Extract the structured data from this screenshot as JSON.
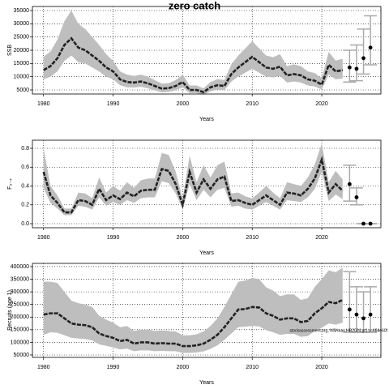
{
  "chart_data": [
    {
      "type": "line",
      "title": "zero catch",
      "ylabel": "SSB",
      "xlabel": "Years",
      "xlim": [
        1978.4,
        2028.5
      ],
      "xticks": [
        1980,
        1990,
        2000,
        2010,
        2020
      ],
      "ylim": [
        3470,
        36530
      ],
      "yticks": [
        5000,
        10000,
        15000,
        20000,
        25000,
        30000,
        35000
      ],
      "grid": true,
      "color": "#222222",
      "band_color": "#bebebe",
      "bar_color": "#aaaaaa",
      "x": [
        1980,
        1981,
        1982,
        1983,
        1984,
        1985,
        1986,
        1987,
        1988,
        1989,
        1990,
        1991,
        1992,
        1993,
        1994,
        1995,
        1996,
        1997,
        1998,
        1999,
        2000,
        2001,
        2002,
        2003,
        2004,
        2005,
        2006,
        2007,
        2008,
        2009,
        2010,
        2011,
        2012,
        2013,
        2014,
        2015,
        2016,
        2017,
        2018,
        2019,
        2020,
        2021,
        2022,
        2023
      ],
      "values": [
        12500,
        14000,
        17000,
        22000,
        24500,
        21000,
        20000,
        18000,
        16000,
        13500,
        12000,
        9000,
        8000,
        7800,
        8200,
        7500,
        6500,
        5500,
        5700,
        6500,
        8000,
        5000,
        5000,
        4200,
        6000,
        6800,
        6500,
        11000,
        13500,
        15500,
        17500,
        15500,
        13500,
        13000,
        13800,
        10500,
        11000,
        10500,
        9000,
        8500,
        7000,
        14500,
        12000,
        12500
      ],
      "low": [
        9000,
        10000,
        12000,
        16000,
        18000,
        15500,
        15000,
        13500,
        12000,
        10000,
        9000,
        6800,
        6000,
        5900,
        6200,
        5600,
        4900,
        4100,
        4300,
        4900,
        6000,
        3800,
        3800,
        3200,
        4500,
        5100,
        4900,
        8200,
        10000,
        11500,
        13000,
        11500,
        10000,
        9700,
        10300,
        7800,
        8200,
        7800,
        6700,
        6300,
        5200,
        10800,
        9000,
        9300
      ],
      "high": [
        17500,
        19500,
        24000,
        31000,
        35000,
        30000,
        28000,
        25000,
        22000,
        18500,
        16000,
        12000,
        10800,
        10300,
        10800,
        10000,
        8700,
        7400,
        7600,
        8700,
        10800,
        6700,
        6700,
        5600,
        8000,
        9100,
        8700,
        14700,
        18000,
        20700,
        23400,
        20700,
        18000,
        17400,
        18500,
        14000,
        14700,
        14000,
        12000,
        11400,
        9400,
        19400,
        16100,
        16800
      ],
      "projection": {
        "x": [
          2024,
          2025,
          2026,
          2027
        ],
        "values": [
          13500,
          13000,
          17000,
          21000
        ],
        "low": [
          8000,
          8500,
          11000,
          14500
        ],
        "high": [
          20000,
          22000,
          28000,
          33000
        ]
      }
    },
    {
      "type": "line",
      "ylabel": "F₃₋₄",
      "xlabel": "Years",
      "xlim": [
        1978.4,
        2028.5
      ],
      "xticks": [
        1980,
        1990,
        2000,
        2010,
        2020
      ],
      "ylim": [
        -0.043,
        0.886
      ],
      "yticks": [
        {
          "value": 0,
          "label": "0.0"
        },
        0.2,
        0.4,
        0.6,
        0.8
      ],
      "grid": true,
      "color": "#222222",
      "band_color": "#bebebe",
      "bar_color": "#aaaaaa",
      "x": [
        1980,
        1981,
        1982,
        1983,
        1984,
        1985,
        1986,
        1987,
        1988,
        1989,
        1990,
        1991,
        1992,
        1993,
        1994,
        1995,
        1996,
        1997,
        1998,
        1999,
        2000,
        2001,
        2002,
        2003,
        2004,
        2005,
        2006,
        2007,
        2008,
        2009,
        2010,
        2011,
        2012,
        2013,
        2014,
        2015,
        2016,
        2017,
        2018,
        2019,
        2020,
        2021,
        2022,
        2023
      ],
      "values": [
        0.55,
        0.3,
        0.22,
        0.12,
        0.12,
        0.25,
        0.24,
        0.2,
        0.37,
        0.25,
        0.3,
        0.26,
        0.33,
        0.29,
        0.35,
        0.36,
        0.36,
        0.58,
        0.56,
        0.42,
        0.2,
        0.55,
        0.33,
        0.47,
        0.37,
        0.47,
        0.5,
        0.24,
        0.25,
        0.22,
        0.2,
        0.25,
        0.3,
        0.25,
        0.2,
        0.33,
        0.32,
        0.3,
        0.37,
        0.48,
        0.68,
        0.33,
        0.42,
        0.35
      ],
      "low": [
        0.38,
        0.22,
        0.16,
        0.09,
        0.09,
        0.19,
        0.18,
        0.15,
        0.28,
        0.19,
        0.23,
        0.2,
        0.25,
        0.22,
        0.27,
        0.28,
        0.28,
        0.45,
        0.43,
        0.32,
        0.15,
        0.42,
        0.25,
        0.36,
        0.28,
        0.36,
        0.38,
        0.18,
        0.19,
        0.16,
        0.15,
        0.19,
        0.23,
        0.19,
        0.15,
        0.25,
        0.24,
        0.23,
        0.28,
        0.37,
        0.55,
        0.24,
        0.31,
        0.26
      ],
      "high": [
        0.8,
        0.4,
        0.3,
        0.16,
        0.16,
        0.33,
        0.32,
        0.27,
        0.49,
        0.33,
        0.4,
        0.35,
        0.44,
        0.38,
        0.46,
        0.48,
        0.48,
        0.75,
        0.73,
        0.55,
        0.27,
        0.72,
        0.44,
        0.62,
        0.49,
        0.62,
        0.66,
        0.32,
        0.33,
        0.29,
        0.27,
        0.33,
        0.4,
        0.33,
        0.27,
        0.44,
        0.42,
        0.4,
        0.49,
        0.63,
        0.85,
        0.44,
        0.56,
        0.47
      ],
      "projection": {
        "x": [
          2024,
          2025,
          2026,
          2027
        ],
        "values": [
          0.42,
          0.28,
          0,
          0
        ],
        "low": [
          0.24,
          0.2,
          0,
          0
        ],
        "high": [
          0.62,
          0.38,
          0,
          0
        ]
      }
    },
    {
      "type": "line",
      "ylabel": "Recruits (age 1)",
      "xlabel": "Years",
      "annotation": "stockassessment.org, NSHaas.HB2024.gt1.cc484e60f",
      "xlim": [
        1978.4,
        2028.5
      ],
      "xticks": [
        1980,
        1990,
        2000,
        2010,
        2020
      ],
      "ylim": [
        40400,
        412800
      ],
      "yticks": [
        50000,
        100000,
        150000,
        200000,
        250000,
        300000,
        350000,
        400000
      ],
      "grid": true,
      "color": "#222222",
      "band_color": "#bebebe",
      "bar_color": "#aaaaaa",
      "x": [
        1980,
        1981,
        1982,
        1983,
        1984,
        1985,
        1986,
        1987,
        1988,
        1989,
        1990,
        1991,
        1992,
        1993,
        1994,
        1995,
        1996,
        1997,
        1998,
        1999,
        2000,
        2001,
        2002,
        2003,
        2004,
        2005,
        2006,
        2007,
        2008,
        2009,
        2010,
        2011,
        2012,
        2013,
        2014,
        2015,
        2016,
        2017,
        2018,
        2019,
        2020,
        2021,
        2022,
        2023
      ],
      "values": [
        210000,
        215000,
        215000,
        195000,
        175000,
        170000,
        168000,
        160000,
        135000,
        125000,
        118000,
        105000,
        110000,
        95000,
        100000,
        100000,
        95000,
        97000,
        95000,
        95000,
        85000,
        85000,
        88000,
        95000,
        110000,
        130000,
        160000,
        195000,
        230000,
        232000,
        240000,
        238000,
        215000,
        205000,
        190000,
        195000,
        195000,
        180000,
        185000,
        215000,
        235000,
        260000,
        255000,
        268000
      ],
      "low": [
        130000,
        140000,
        138000,
        128000,
        118000,
        115000,
        113000,
        108000,
        92000,
        86000,
        80000,
        72000,
        75000,
        65000,
        68000,
        68000,
        65000,
        66000,
        65000,
        65000,
        58000,
        58000,
        60000,
        64000,
        74000,
        88000,
        110000,
        135000,
        160000,
        162000,
        165000,
        163000,
        148000,
        140000,
        130000,
        133000,
        133000,
        122000,
        125000,
        145000,
        158000,
        175000,
        170000,
        178000
      ],
      "high": [
        340000,
        340000,
        335000,
        300000,
        265000,
        255000,
        250000,
        240000,
        205000,
        190000,
        178000,
        160000,
        165000,
        145000,
        150000,
        150000,
        145000,
        147000,
        145000,
        143000,
        128000,
        128000,
        132000,
        143000,
        165000,
        195000,
        240000,
        290000,
        340000,
        345000,
        355000,
        350000,
        318000,
        305000,
        283000,
        290000,
        290000,
        268000,
        275000,
        320000,
        350000,
        385000,
        378000,
        395000
      ],
      "projection": {
        "x": [
          2024,
          2025,
          2026,
          2027
        ],
        "values": [
          230000,
          210000,
          195000,
          210000
        ],
        "low": [
          140000,
          140000,
          140000,
          140000
        ],
        "high": [
          380000,
          320000,
          300000,
          320000
        ]
      }
    }
  ]
}
